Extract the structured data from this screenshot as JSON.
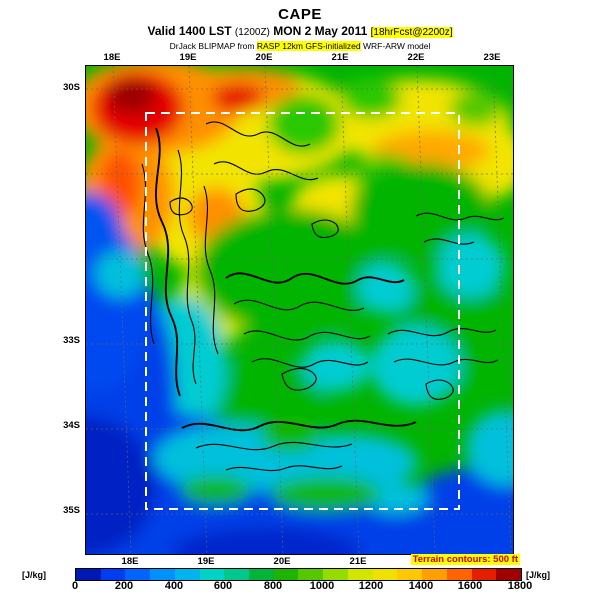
{
  "header": {
    "title": "CAPE",
    "valid_bold1": "Valid 1400 LST",
    "valid_small1": "(1200Z)",
    "valid_bold2": "MON 2 May 2011",
    "valid_highlight": "[18hrFcst@2200z]",
    "model_prefix": "DrJack BLIPMAP from",
    "model_highlight": "RASP 12km GFS-initialized",
    "model_suffix": "WRF-ARW model"
  },
  "map": {
    "top_labels": [
      "18E",
      "19E",
      "20E",
      "21E",
      "22E",
      "23E"
    ],
    "bottom_labels": [
      "18E",
      "19E",
      "20E",
      "21E"
    ],
    "left_labels": [
      "30S",
      "33S",
      "34S",
      "35S"
    ]
  },
  "footer": {
    "terrain_note": "Terrain contours: 500 ft",
    "units_left": "[J/kg]",
    "units_right": "[J/kg]"
  },
  "colorbar": {
    "ticks": [
      "0",
      "200",
      "400",
      "600",
      "800",
      "1000",
      "1200",
      "1400",
      "1600",
      "1800"
    ],
    "unit": "J/kg",
    "min": 0,
    "max": 1800,
    "colors": [
      "#0018b4",
      "#003cf0",
      "#0064ff",
      "#0090ff",
      "#00b4f0",
      "#00d2c8",
      "#00c88c",
      "#00b43c",
      "#1eb400",
      "#55c800",
      "#96dc00",
      "#d2e600",
      "#f0e100",
      "#ffc800",
      "#ffa000",
      "#ff6400",
      "#e61e00",
      "#a00000"
    ]
  }
}
